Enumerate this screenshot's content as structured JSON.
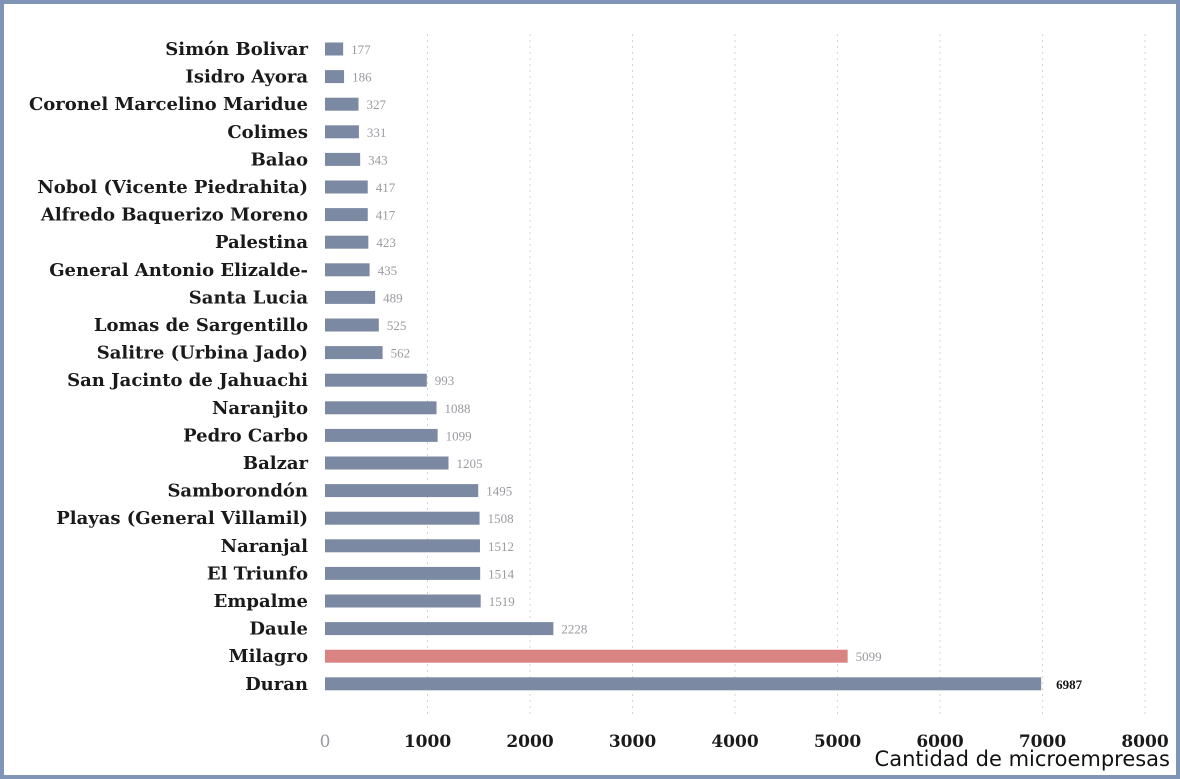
{
  "chart_data": {
    "type": "bar",
    "orientation": "horizontal",
    "xlabel": "Cantidad de microempresas",
    "xlim": [
      0,
      8000
    ],
    "xticks": [
      0,
      1000,
      2000,
      3000,
      4000,
      5000,
      6000,
      7000,
      8000
    ],
    "grid": "vertical dashed",
    "categories": [
      "Simón Bolivar",
      "Isidro Ayora",
      "Coronel Marcelino Maridue",
      "Colimes",
      "Balao",
      "Nobol (Vicente Piedrahita)",
      "Alfredo Baquerizo Moreno",
      "Palestina",
      "General Antonio Elizalde-",
      "Santa Lucia",
      "Lomas de Sargentillo",
      "Salitre (Urbina Jado)",
      "San Jacinto de Jahuachi",
      "Naranjito",
      "Pedro Carbo",
      "Balzar",
      "Samborondón",
      "Playas (General Villamil)",
      "Naranjal",
      "El Triunfo",
      "Empalme",
      "Daule",
      "Milagro",
      "Duran"
    ],
    "values": [
      177,
      186,
      327,
      331,
      343,
      417,
      417,
      423,
      435,
      489,
      525,
      562,
      993,
      1088,
      1099,
      1205,
      1495,
      1508,
      1512,
      1514,
      1519,
      2228,
      5099,
      6987
    ],
    "bar_color": "#7b8aa2",
    "highlight_color": "#d98383",
    "highlight_category": "Milagro"
  }
}
